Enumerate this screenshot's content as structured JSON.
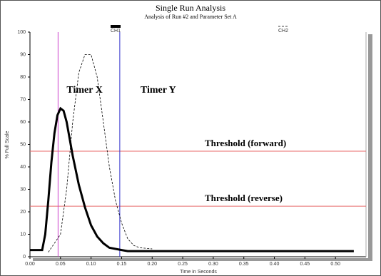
{
  "chart_data": {
    "type": "line",
    "title": "Single Run Analysis",
    "subtitle": "Analysis of Run #2 and Parameter Set A",
    "xlabel": "Time in Seconds",
    "ylabel": "% Full Scale",
    "xlim": [
      0,
      0.55
    ],
    "ylim": [
      0,
      100
    ],
    "xticks": [
      {
        "value": 0,
        "label": "0.00"
      },
      {
        "value": 0.05,
        "label": "0.05"
      },
      {
        "value": 0.1,
        "label": "0.10"
      },
      {
        "value": 0.15,
        "label": "0.15"
      },
      {
        "value": 0.2,
        "label": "0.20"
      },
      {
        "value": 0.25,
        "label": "0.25"
      },
      {
        "value": 0.3,
        "label": "0.30"
      },
      {
        "value": 0.35,
        "label": "0.35"
      },
      {
        "value": 0.4,
        "label": "0.40"
      },
      {
        "value": 0.45,
        "label": "0.45"
      },
      {
        "value": 0.5,
        "label": "0.50"
      }
    ],
    "yticks": [
      0,
      10,
      20,
      30,
      40,
      50,
      60,
      70,
      80,
      90,
      100
    ],
    "series": [
      {
        "name": "CH1",
        "color": "#000000",
        "style": "solid",
        "x": [
          0,
          0.02,
          0.025,
          0.03,
          0.035,
          0.04,
          0.045,
          0.05,
          0.055,
          0.06,
          0.07,
          0.08,
          0.09,
          0.1,
          0.11,
          0.12,
          0.13,
          0.14,
          0.15,
          0.16,
          0.53
        ],
        "values": [
          3,
          3,
          10,
          25,
          42,
          55,
          63,
          66,
          65,
          60,
          45,
          32,
          22,
          14,
          9,
          6,
          4,
          3.5,
          3,
          2.5,
          2.5
        ]
      },
      {
        "name": "CH2",
        "color": "#000000",
        "style": "dashed",
        "x": [
          0.03,
          0.05,
          0.06,
          0.07,
          0.08,
          0.09,
          0.1,
          0.11,
          0.12,
          0.13,
          0.14,
          0.15,
          0.16,
          0.17,
          0.18,
          0.2
        ],
        "values": [
          2,
          10,
          30,
          60,
          82,
          90,
          90,
          80,
          60,
          40,
          25,
          15,
          8,
          5,
          4,
          3.5
        ]
      }
    ],
    "thresholds": [
      {
        "label": "Threshold (forward)",
        "value": 47,
        "color": "#e86a6a"
      },
      {
        "label": "Threshold (reverse)",
        "value": 22.5,
        "color": "#e86a6a"
      }
    ],
    "cursors": [
      {
        "label": "Timer X",
        "value": 0.046,
        "color": "#cc44cc"
      },
      {
        "label": "Timer Y",
        "value": 0.147,
        "color": "#3333cc"
      }
    ]
  }
}
